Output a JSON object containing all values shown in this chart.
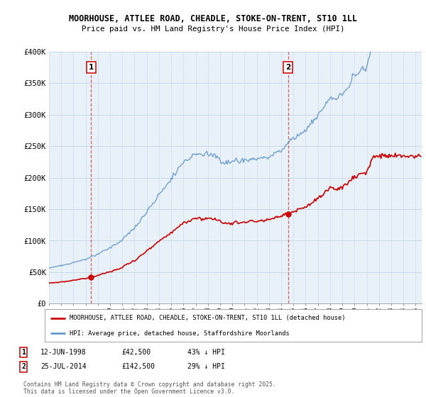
{
  "title_line1": "MOORHOUSE, ATTLEE ROAD, CHEADLE, STOKE-ON-TRENT, ST10 1LL",
  "title_line2": "Price paid vs. HM Land Registry's House Price Index (HPI)",
  "ylim": [
    0,
    400000
  ],
  "yticks": [
    0,
    50000,
    100000,
    150000,
    200000,
    250000,
    300000,
    350000,
    400000
  ],
  "ytick_labels": [
    "£0",
    "£50K",
    "£100K",
    "£150K",
    "£200K",
    "£250K",
    "£300K",
    "£350K",
    "£400K"
  ],
  "xlim_start": 1995.0,
  "xlim_end": 2025.5,
  "hpi_color": "#6699cc",
  "price_color": "#cc0000",
  "plot_bg_color": "#e8f0f8",
  "marker1_date": 1998.45,
  "marker1_price": 42500,
  "marker1_label": "12-JUN-1998",
  "marker1_value_str": "£42,500",
  "marker1_pct": "43% ↓ HPI",
  "marker2_date": 2014.56,
  "marker2_price": 142500,
  "marker2_label": "25-JUL-2014",
  "marker2_value_str": "£142,500",
  "marker2_pct": "29% ↓ HPI",
  "legend_line1": "MOORHOUSE, ATTLEE ROAD, CHEADLE, STOKE-ON-TRENT, ST10 1LL (detached house)",
  "legend_line2": "HPI: Average price, detached house, Staffordshire Moorlands",
  "footnote": "Contains HM Land Registry data © Crown copyright and database right 2025.\nThis data is licensed under the Open Government Licence v3.0.",
  "bg_color": "#ffffff",
  "grid_color": "#c8d8e8"
}
